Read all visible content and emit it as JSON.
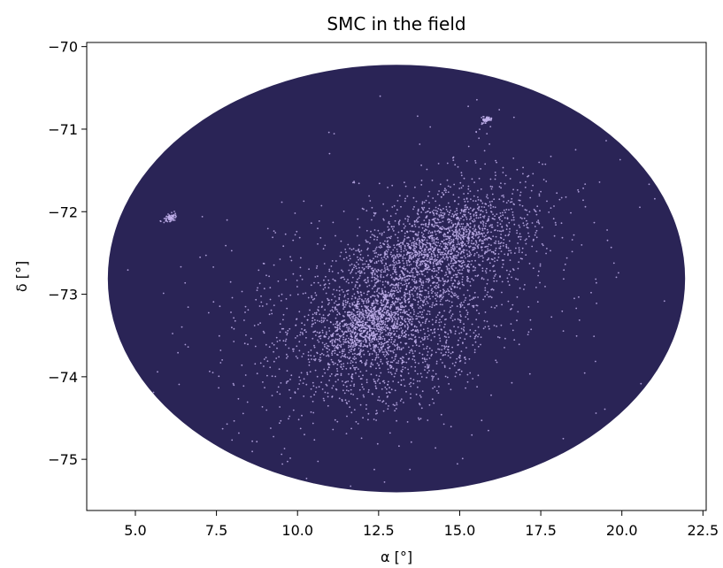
{
  "chart_data": {
    "type": "scatter",
    "title": "SMC in the field",
    "xlabel": "α [°]",
    "ylabel": "δ [°]",
    "xlim": [
      3.5,
      22.6
    ],
    "ylim": [
      -75.62,
      -69.95
    ],
    "xticks": [
      5.0,
      7.5,
      10.0,
      12.5,
      15.0,
      17.5,
      20.0,
      22.5
    ],
    "xtick_labels": [
      "5.0",
      "7.5",
      "10.0",
      "12.5",
      "15.0",
      "17.5",
      "20.0",
      "22.5"
    ],
    "yticks": [
      -70,
      -71,
      -72,
      -73,
      -74,
      -75
    ],
    "ytick_labels": [
      "−70",
      "−71",
      "−72",
      "−73",
      "−74",
      "−75"
    ],
    "grid": false,
    "field": {
      "color": "#2a2456",
      "center": [
        13.05,
        -72.81
      ],
      "semi_axis_ra": 8.9,
      "semi_axis_dec": 2.59
    },
    "point_color": "#c2b2ec",
    "clusters": [
      {
        "center": [
          13.0,
          -73.0
        ],
        "extent": [
          3.2,
          0.7
        ],
        "density": "high"
      },
      {
        "center": [
          14.3,
          -72.4
        ],
        "extent": [
          2.4,
          0.5
        ],
        "density": "high"
      },
      {
        "center": [
          12.2,
          -73.4
        ],
        "extent": [
          1.6,
          0.4
        ],
        "density": "high"
      },
      {
        "center": [
          13.2,
          -73.8
        ],
        "extent": [
          3.0,
          0.6
        ],
        "density": "medium"
      },
      {
        "center": [
          15.0,
          -72.3
        ],
        "extent": [
          2.5,
          0.7
        ],
        "density": "medium"
      },
      {
        "center": [
          13.0,
          -73.0
        ],
        "extent": [
          6.5,
          1.6
        ],
        "density": "low"
      },
      {
        "center": [
          6.05,
          -72.08
        ],
        "extent": [
          0.18,
          0.05
        ],
        "density": "compact"
      },
      {
        "center": [
          15.85,
          -70.88
        ],
        "extent": [
          0.14,
          0.04
        ],
        "density": "compact"
      }
    ]
  }
}
